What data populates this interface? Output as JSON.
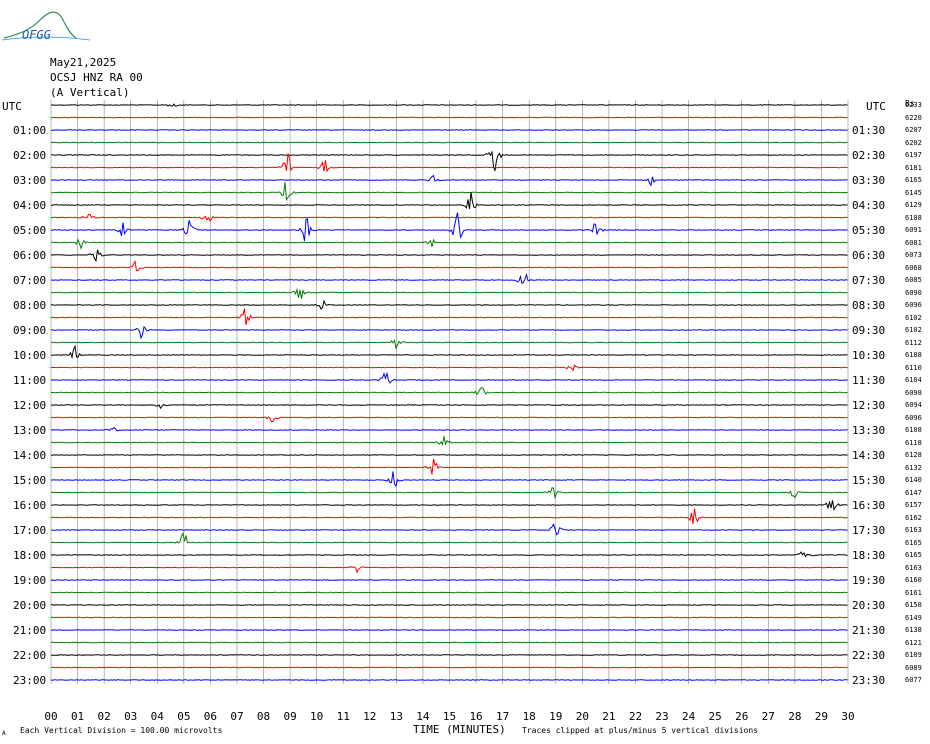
{
  "header": {
    "logo_text": "OFGG",
    "date": "May21,2025",
    "station": "OCSJ HNZ RA 00",
    "component": "(A Vertical)"
  },
  "axis": {
    "left_title": "UTC",
    "right_title": "UTC",
    "right_extra": "Bs",
    "xlabel": "TIME (MINUTES)"
  },
  "footer": {
    "division": "Each Vertical Division =  100.00 microvolts",
    "clip_note": "Traces clipped at plus/minus 5 vertical divisions",
    "mark": "A"
  },
  "colors": {
    "black": "#000000",
    "red": "#ff0000",
    "blue": "#0000ff",
    "green": "#008000",
    "grid": "#888888"
  },
  "chart_data": {
    "type": "line",
    "title": "OCSJ HNZ RA 00 (A Vertical)",
    "xlabel": "TIME (MINUTES)",
    "xlim": [
      0,
      30
    ],
    "x_ticks": [
      "00",
      "01",
      "02",
      "03",
      "04",
      "05",
      "06",
      "07",
      "08",
      "09",
      "10",
      "11",
      "12",
      "13",
      "14",
      "15",
      "16",
      "17",
      "18",
      "19",
      "20",
      "21",
      "22",
      "23",
      "24",
      "25",
      "26",
      "27",
      "28",
      "29",
      "30"
    ],
    "left_labels": [
      "01:00",
      "02:00",
      "03:00",
      "04:00",
      "05:00",
      "06:00",
      "07:00",
      "08:00",
      "09:00",
      "10:00",
      "11:00",
      "12:00",
      "13:00",
      "14:00",
      "15:00",
      "16:00",
      "17:00",
      "18:00",
      "19:00",
      "20:00",
      "21:00",
      "22:00",
      "23:00"
    ],
    "right_labels": [
      "01:30",
      "02:30",
      "03:30",
      "04:30",
      "05:30",
      "06:30",
      "07:30",
      "08:30",
      "09:30",
      "10:30",
      "11:30",
      "12:30",
      "13:30",
      "14:30",
      "15:30",
      "16:30",
      "17:30",
      "18:30",
      "19:30",
      "20:30",
      "21:30",
      "22:30",
      "23:30"
    ],
    "right_values": [
      "6233",
      "6220",
      "6207",
      "6202",
      "6197",
      "6181",
      "6165",
      "6145",
      "6129",
      "6108",
      "6091",
      "6081",
      "6073",
      "6068",
      "6085",
      "6090",
      "6096",
      "6102",
      "6102",
      "6112",
      "6108",
      "6110",
      "6104",
      "6098",
      "6094",
      "6096",
      "6108",
      "6118",
      "6128",
      "6132",
      "6140",
      "6147",
      "6157",
      "6162",
      "6163",
      "6165",
      "6165",
      "6163",
      "6160",
      "6161",
      "6158",
      "6149",
      "6138",
      "6121",
      "6109",
      "6089",
      "6077"
    ],
    "trace_colors": [
      "black",
      "red",
      "blue",
      "green"
    ],
    "events": [
      {
        "trace": 0,
        "minute": 4.6,
        "amplitude": 2
      },
      {
        "trace": 4,
        "minute": 16.7,
        "amplitude": 8
      },
      {
        "trace": 5,
        "minute": 10.3,
        "amplitude": 4
      },
      {
        "trace": 5,
        "minute": 8.9,
        "amplitude": 6
      },
      {
        "trace": 6,
        "minute": 14.4,
        "amplitude": 2
      },
      {
        "trace": 6,
        "minute": 22.6,
        "amplitude": 2
      },
      {
        "trace": 7,
        "minute": 8.9,
        "amplitude": 8
      },
      {
        "trace": 8,
        "minute": 15.8,
        "amplitude": 5
      },
      {
        "trace": 9,
        "minute": 1.4,
        "amplitude": 3
      },
      {
        "trace": 9,
        "minute": 5.9,
        "amplitude": 3
      },
      {
        "trace": 10,
        "minute": 2.7,
        "amplitude": 3
      },
      {
        "trace": 10,
        "minute": 5.2,
        "amplitude": 4
      },
      {
        "trace": 10,
        "minute": 9.6,
        "amplitude": 6
      },
      {
        "trace": 10,
        "minute": 15.3,
        "amplitude": 7
      },
      {
        "trace": 10,
        "minute": 20.5,
        "amplitude": 4
      },
      {
        "trace": 11,
        "minute": 1.1,
        "amplitude": 3
      },
      {
        "trace": 11,
        "minute": 14.3,
        "amplitude": 3
      },
      {
        "trace": 12,
        "minute": 1.7,
        "amplitude": 3
      },
      {
        "trace": 13,
        "minute": 3.2,
        "amplitude": 3
      },
      {
        "trace": 14,
        "minute": 17.8,
        "amplitude": 5
      },
      {
        "trace": 15,
        "minute": 9.4,
        "amplitude": 4
      },
      {
        "trace": 16,
        "minute": 10.2,
        "amplitude": 3
      },
      {
        "trace": 17,
        "minute": 7.3,
        "amplitude": 4
      },
      {
        "trace": 18,
        "minute": 3.4,
        "amplitude": 3
      },
      {
        "trace": 19,
        "minute": 13.0,
        "amplitude": 3
      },
      {
        "trace": 20,
        "minute": 0.9,
        "amplitude": 3
      },
      {
        "trace": 21,
        "minute": 19.6,
        "amplitude": 2
      },
      {
        "trace": 22,
        "minute": 12.6,
        "amplitude": 4
      },
      {
        "trace": 23,
        "minute": 16.2,
        "amplitude": 3
      },
      {
        "trace": 24,
        "minute": 4.1,
        "amplitude": 2
      },
      {
        "trace": 25,
        "minute": 8.3,
        "amplitude": 3
      },
      {
        "trace": 26,
        "minute": 2.3,
        "amplitude": 2
      },
      {
        "trace": 27,
        "minute": 14.8,
        "amplitude": 3
      },
      {
        "trace": 29,
        "minute": 14.4,
        "amplitude": 4
      },
      {
        "trace": 30,
        "minute": 12.9,
        "amplitude": 4
      },
      {
        "trace": 31,
        "minute": 28.0,
        "amplitude": 3
      },
      {
        "trace": 31,
        "minute": 18.9,
        "amplitude": 3
      },
      {
        "trace": 32,
        "minute": 29.4,
        "amplitude": 4
      },
      {
        "trace": 33,
        "minute": 24.2,
        "amplitude": 6
      },
      {
        "trace": 34,
        "minute": 19.0,
        "amplitude": 4
      },
      {
        "trace": 35,
        "minute": 5.0,
        "amplitude": 5
      },
      {
        "trace": 36,
        "minute": 28.4,
        "amplitude": 6
      },
      {
        "trace": 37,
        "minute": 11.5,
        "amplitude": 2
      }
    ]
  }
}
